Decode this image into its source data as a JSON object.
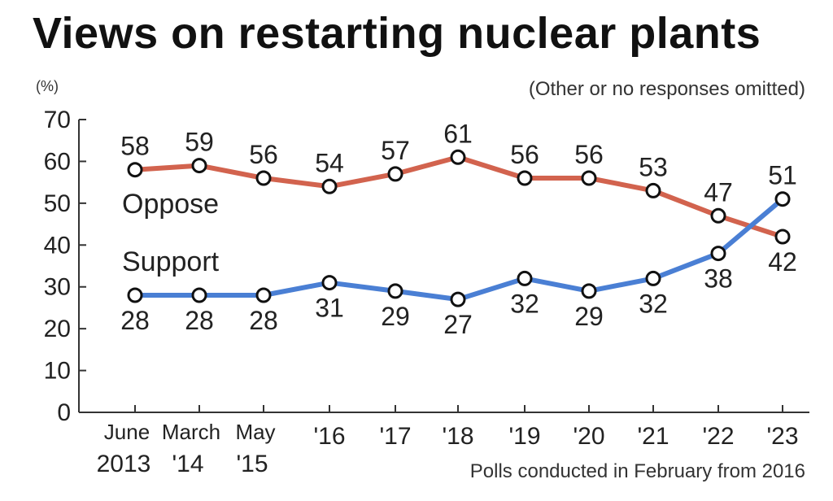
{
  "title": "Views on restarting nuclear plants",
  "unit": "(%)",
  "subtitle": "(Other or no responses omitted)",
  "footnote": "Polls conducted in February from 2016",
  "colors": {
    "oppose": "#d2634e",
    "support": "#4a7fd4"
  },
  "chart_data": {
    "type": "line",
    "title": "Views on restarting nuclear plants",
    "ylabel": "(%)",
    "ylim": [
      0,
      70
    ],
    "yticks": [
      0,
      10,
      20,
      30,
      40,
      50,
      60,
      70
    ],
    "grid": false,
    "categories": [
      "June 2013",
      "March '14",
      "May '15",
      "'16",
      "'17",
      "'18",
      "'19",
      "'20",
      "'21",
      "'22",
      "'23"
    ],
    "category_lines": [
      [
        "June",
        "2013"
      ],
      [
        "March",
        "'14"
      ],
      [
        "May",
        "'15"
      ],
      [
        "'16"
      ],
      [
        "'17"
      ],
      [
        "'18"
      ],
      [
        "'19"
      ],
      [
        "'20"
      ],
      [
        "'21"
      ],
      [
        "'22"
      ],
      [
        "'23"
      ]
    ],
    "series": [
      {
        "name": "Oppose",
        "values": [
          58,
          59,
          56,
          54,
          57,
          61,
          56,
          56,
          53,
          47,
          42
        ]
      },
      {
        "name": "Support",
        "values": [
          28,
          28,
          28,
          31,
          29,
          27,
          32,
          29,
          32,
          38,
          51
        ]
      }
    ]
  }
}
